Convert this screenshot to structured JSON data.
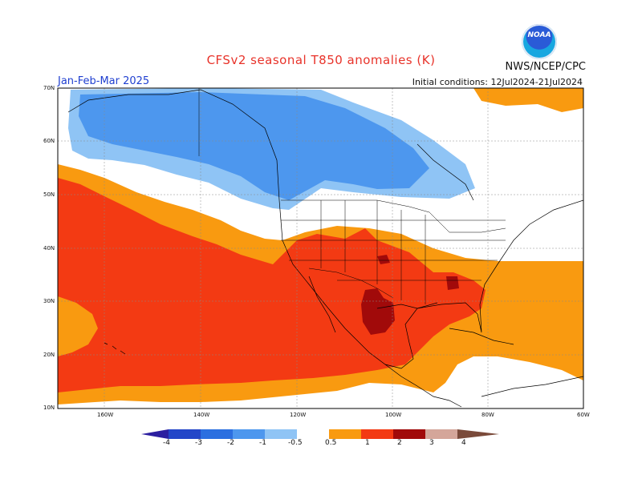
{
  "header": {
    "title": "CFSv2 seasonal T850 anomalies (K)",
    "org": "NWS/NCEP/CPC",
    "season": "Jan-Feb-Mar 2025",
    "initial_conditions": "Initial conditions: 12Jul2024-21Jul2024",
    "logo_text": "NOAA"
  },
  "axes": {
    "lat_labels": [
      "70N",
      "60N",
      "50N",
      "40N",
      "30N",
      "20N",
      "10N"
    ],
    "lon_labels": [
      "160W",
      "140W",
      "120W",
      "100W",
      "80W",
      "60W"
    ]
  },
  "colorbar": {
    "labels": [
      "-4",
      "-3",
      "-2",
      "-1",
      "-0.5",
      "0.5",
      "1",
      "2",
      "3",
      "4"
    ],
    "colors": [
      "#2c1fa0",
      "#2346c8",
      "#2b6fe0",
      "#4d97ee",
      "#8fc4f5",
      "#ffffff",
      "#f99a10",
      "#f33a13",
      "#a10a0a",
      "#d4a69a",
      "#7a4a3a"
    ]
  },
  "map": {
    "colors": {
      "very_warm": "#a10a0a",
      "warm": "#f33a13",
      "mild_warm": "#f99a10",
      "neutral": "#ffffff",
      "mild_cool": "#8fc4f5",
      "cool": "#4d97ee",
      "land_line": "#000000"
    }
  }
}
